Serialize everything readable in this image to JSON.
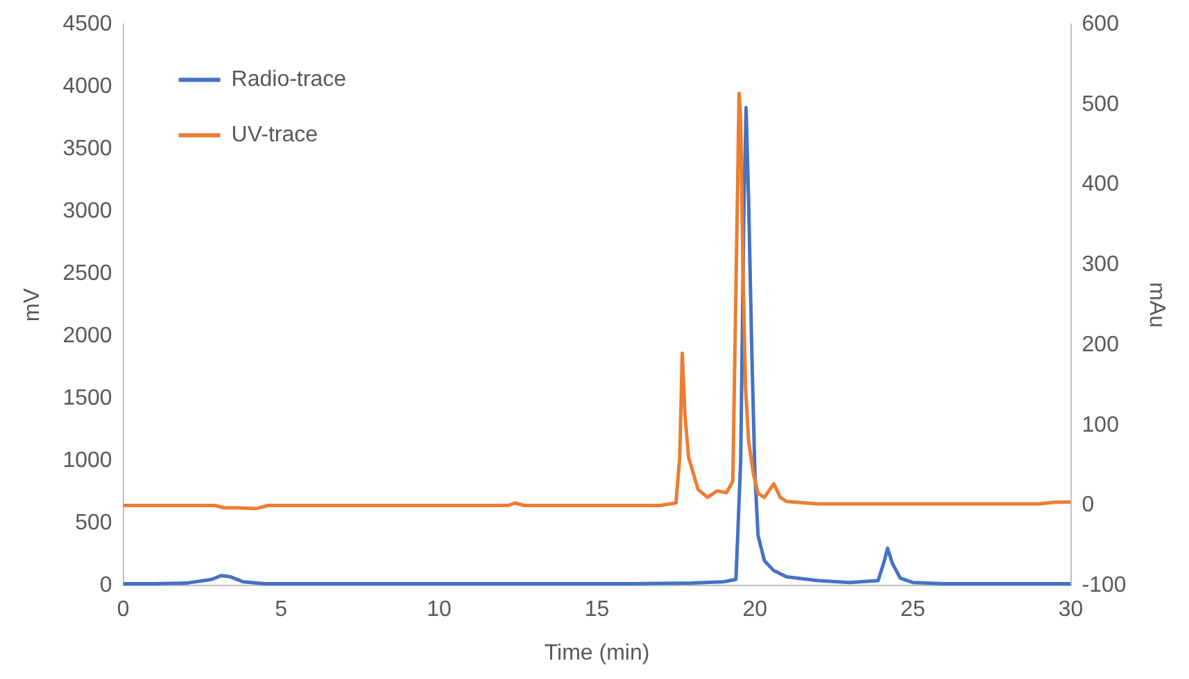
{
  "chart_data": {
    "type": "line",
    "xlabel": "Time (min)",
    "ylabel": "mV",
    "y2label": "mAu",
    "xlim": [
      0,
      30
    ],
    "xticks": [
      0,
      5,
      10,
      15,
      20,
      25,
      30
    ],
    "ylim": [
      0,
      4500
    ],
    "yticks": [
      0,
      500,
      1000,
      1500,
      2000,
      2500,
      3000,
      3500,
      4000,
      4500
    ],
    "y2lim": [
      -100,
      600
    ],
    "y2ticks": [
      -100,
      0,
      100,
      200,
      300,
      400,
      500,
      600
    ],
    "grid": false,
    "legend": "top left",
    "marker": "none",
    "line_style": "solid",
    "series": [
      {
        "name": "Radio-trace",
        "color": "#4472c4",
        "x": [
          0,
          1,
          2,
          2.8,
          3.1,
          3.4,
          3.8,
          4.5,
          6,
          8,
          10,
          12,
          14,
          16,
          18,
          19,
          19.4,
          19.55,
          19.65,
          19.72,
          19.8,
          19.9,
          20.0,
          20.1,
          20.3,
          20.6,
          21,
          22,
          23,
          23.9,
          24.1,
          24.2,
          24.35,
          24.6,
          25,
          26,
          28,
          30
        ],
        "values": [
          15,
          15,
          20,
          50,
          80,
          70,
          30,
          15,
          15,
          15,
          15,
          15,
          15,
          15,
          20,
          30,
          50,
          1000,
          3000,
          3833,
          3100,
          1900,
          900,
          400,
          200,
          120,
          70,
          40,
          25,
          40,
          200,
          300,
          180,
          60,
          25,
          15,
          15,
          15
        ]
      },
      {
        "name": "UV-trace",
        "color": "#ed7d31",
        "axis": "y2",
        "x": [
          0,
          2.9,
          3.2,
          3.6,
          4.2,
          4.6,
          5,
          12.2,
          12.4,
          12.7,
          17,
          17.5,
          17.62,
          17.7,
          17.78,
          17.9,
          18.2,
          18.5,
          18.8,
          19.1,
          19.3,
          19.42,
          19.5,
          19.55,
          19.62,
          19.7,
          19.8,
          19.95,
          20.1,
          20.3,
          20.6,
          20.8,
          21,
          22,
          29,
          29.5,
          30
        ],
        "values": [
          0,
          0,
          -3,
          -3,
          -4,
          0,
          0,
          0,
          3,
          0,
          0,
          3,
          60,
          190,
          116,
          60,
          20,
          10,
          18,
          16,
          30,
          319,
          514,
          480,
          300,
          150,
          80,
          40,
          15,
          10,
          27,
          10,
          5,
          2,
          2,
          4,
          4
        ]
      }
    ]
  }
}
